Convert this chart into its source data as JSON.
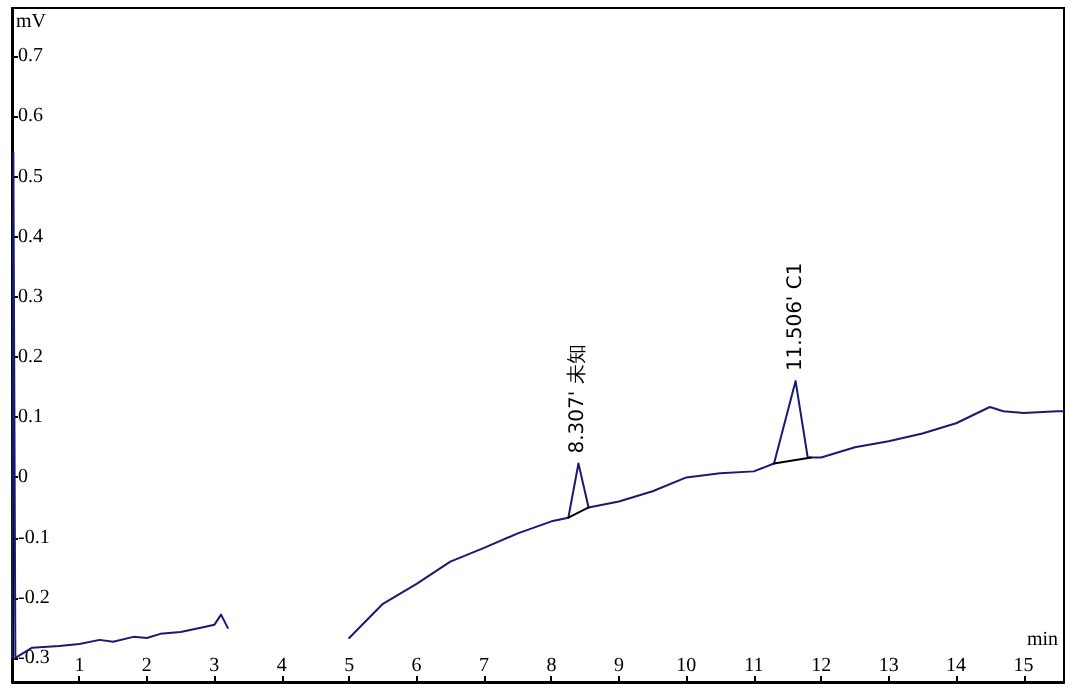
{
  "chart_data": {
    "type": "line",
    "xlabel": "min",
    "ylabel": "mV",
    "xlim": [
      0,
      15.6
    ],
    "ylim": [
      -0.34,
      0.78
    ],
    "xticks": [
      1,
      2,
      3,
      4,
      5,
      6,
      7,
      8,
      9,
      10,
      11,
      12,
      13,
      14,
      15
    ],
    "yticks": [
      -0.3,
      -0.2,
      -0.1,
      0,
      0.1,
      0.2,
      0.3,
      0.4,
      0.5,
      0.6,
      0.7
    ],
    "grid": false,
    "marker": "none",
    "line_style": "solid",
    "series": [
      {
        "color": "#1a1a6e",
        "x": [
          0,
          0.02,
          0.05,
          0.3,
          0.7,
          1,
          1.3,
          1.5,
          1.8,
          2,
          2.2,
          2.5,
          2.8,
          3,
          3.1,
          3.2,
          3.25,
          4.7,
          5,
          5.5,
          6,
          6.5,
          7,
          7.5,
          8,
          8.25,
          8.4,
          8.55,
          9,
          9.5,
          10,
          10.5,
          11,
          11.3,
          11.62,
          11.8,
          12,
          12.5,
          13,
          13.5,
          14,
          14.5,
          14.7,
          15,
          15.5,
          15.6
        ],
        "values": [
          -0.3,
          0.54,
          -0.3,
          -0.283,
          -0.28,
          -0.277,
          -0.27,
          -0.273,
          -0.265,
          -0.267,
          -0.26,
          -0.257,
          -0.25,
          -0.245,
          -0.228,
          -0.25,
          null,
          null,
          -0.267,
          -0.21,
          -0.177,
          -0.14,
          -0.117,
          -0.093,
          -0.073,
          -0.067,
          0.023,
          -0.05,
          -0.04,
          -0.023,
          0,
          0.007,
          0.01,
          0.023,
          0.16,
          0.033,
          0.033,
          0.05,
          0.06,
          0.073,
          0.09,
          0.117,
          0.11,
          0.107,
          0.11,
          0.11
        ]
      },
      {
        "color": "#000000",
        "x": [
          8.25,
          8.55
        ],
        "values": [
          -0.067,
          -0.05
        ]
      },
      {
        "color": "#000000",
        "x": [
          11.3,
          11.85
        ],
        "values": [
          0.023,
          0.033
        ]
      }
    ],
    "annotations": [
      {
        "text": "8.307' 未知",
        "x": 8.4,
        "y": 0.023
      },
      {
        "text": "11.506' C1",
        "x": 11.62,
        "y": 0.16
      }
    ]
  }
}
